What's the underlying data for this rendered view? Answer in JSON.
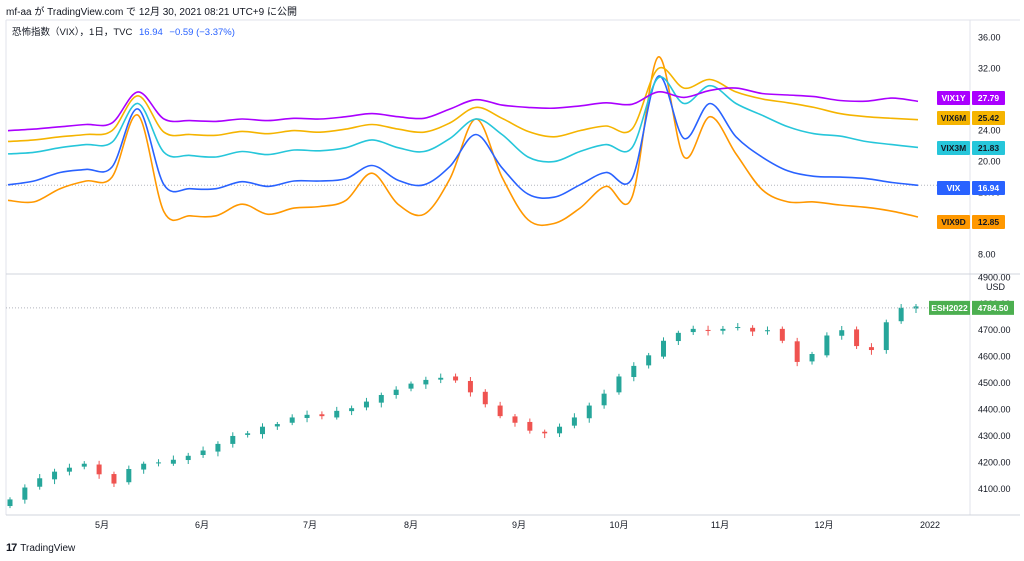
{
  "header": {
    "author": "mf-aa",
    "published_text": "が TradingView.com で 12月 30, 2021 08:21 UTC+9 に公開"
  },
  "legend": {
    "symbol_text": "恐怖指数（VIX），1日，TVC",
    "price": "16.94",
    "change": "−0.59 (−3.37%)"
  },
  "footer": {
    "brand": "TradingView",
    "logo": "17"
  },
  "colors": {
    "VIX1Y": "#aa00ff",
    "VIX6M": "#f5b400",
    "VIX3M": "#26c6da",
    "VIX": "#2962ff",
    "VIX9D": "#ff9800",
    "up": "#26a69a",
    "down": "#ef5350",
    "es": "#4caf50"
  },
  "chart_data": [
    {
      "type": "line",
      "name": "VIX term structure",
      "y_ticks": [
        "36.00",
        "32.00",
        "28.00",
        "24.00",
        "20.00",
        "16.00",
        "12.00",
        "8.00"
      ],
      "ylim": [
        6,
        37
      ],
      "series": [
        {
          "name": "VIX1Y",
          "last": "27.79",
          "values": [
            24.0,
            24.2,
            24.5,
            24.8,
            25.0,
            29.0,
            25.5,
            25.3,
            25.2,
            25.5,
            25.3,
            25.6,
            25.5,
            25.8,
            26.2,
            25.8,
            25.6,
            26.8,
            28.0,
            27.3,
            27.0,
            26.9,
            27.2,
            27.6,
            27.4,
            29.0,
            28.3,
            29.2,
            29.5,
            28.8,
            28.6,
            28.4,
            27.9,
            27.8,
            28.2,
            27.79
          ]
        },
        {
          "name": "VIX6M",
          "last": "25.42",
          "values": [
            22.6,
            22.8,
            23.2,
            23.5,
            24.0,
            28.5,
            23.8,
            23.5,
            23.4,
            23.9,
            23.6,
            24.0,
            23.8,
            24.2,
            24.8,
            24.2,
            23.8,
            25.0,
            27.0,
            25.6,
            23.9,
            23.2,
            24.0,
            24.6,
            24.2,
            32.0,
            29.5,
            30.6,
            29.0,
            28.1,
            27.6,
            27.0,
            26.2,
            25.8,
            25.6,
            25.42
          ]
        },
        {
          "name": "VIX3M",
          "last": "21.83",
          "values": [
            21.0,
            21.2,
            21.8,
            22.2,
            22.5,
            27.5,
            21.2,
            20.8,
            20.6,
            21.3,
            20.9,
            21.5,
            21.4,
            21.8,
            22.8,
            21.8,
            21.3,
            23.0,
            25.5,
            23.5,
            20.6,
            20.0,
            21.3,
            22.2,
            21.8,
            30.8,
            27.5,
            29.8,
            27.5,
            26.0,
            24.5,
            23.6,
            23.3,
            22.6,
            22.2,
            21.83
          ]
        },
        {
          "name": "VIX",
          "last": "16.94",
          "values": [
            17.0,
            17.5,
            18.6,
            19.0,
            19.3,
            26.8,
            17.0,
            16.5,
            16.5,
            17.4,
            16.8,
            17.5,
            17.5,
            17.8,
            19.5,
            17.6,
            17.0,
            19.4,
            23.5,
            19.2,
            15.8,
            15.4,
            17.0,
            18.6,
            17.8,
            31.0,
            23.0,
            27.5,
            23.2,
            20.6,
            18.8,
            18.1,
            18.0,
            17.8,
            17.3,
            16.94
          ]
        },
        {
          "name": "VIX9D",
          "last": "12.85",
          "values": [
            15.0,
            14.8,
            16.5,
            17.5,
            18.0,
            26.0,
            13.5,
            13.0,
            13.0,
            14.5,
            13.2,
            14.0,
            14.2,
            15.0,
            18.5,
            14.5,
            13.2,
            17.8,
            25.5,
            18.0,
            12.5,
            12.0,
            14.0,
            16.8,
            15.4,
            33.5,
            20.6,
            25.8,
            21.0,
            16.4,
            14.8,
            14.8,
            14.4,
            14.1,
            13.6,
            12.85
          ]
        }
      ]
    },
    {
      "type": "candlestick",
      "name": "ESH2022",
      "unit": "USD",
      "last": "4784.50",
      "y_ticks": [
        "4900.00",
        "4800.00",
        "4700.00",
        "4600.00",
        "4500.00",
        "4400.00",
        "4300.00",
        "4200.00",
        "4100.00"
      ],
      "ylim": [
        4020,
        4905
      ],
      "x_labels": [
        "5月",
        "6月",
        "7月",
        "8月",
        "9月",
        "10月",
        "11月",
        "12月",
        "2022"
      ],
      "closes": [
        4060,
        4105,
        4140,
        4165,
        4180,
        4195,
        4155,
        4120,
        4175,
        4195,
        4200,
        4210,
        4225,
        4245,
        4270,
        4300,
        4310,
        4335,
        4345,
        4370,
        4380,
        4375,
        4395,
        4405,
        4430,
        4455,
        4475,
        4498,
        4512,
        4520,
        4510,
        4465,
        4420,
        4375,
        4350,
        4320,
        4310,
        4335,
        4370,
        4415,
        4460,
        4525,
        4565,
        4605,
        4660,
        4690,
        4705,
        4698,
        4705,
        4712,
        4695,
        4700,
        4660,
        4580,
        4610,
        4680,
        4700,
        4640,
        4625,
        4730,
        4785,
        4790
      ]
    }
  ]
}
